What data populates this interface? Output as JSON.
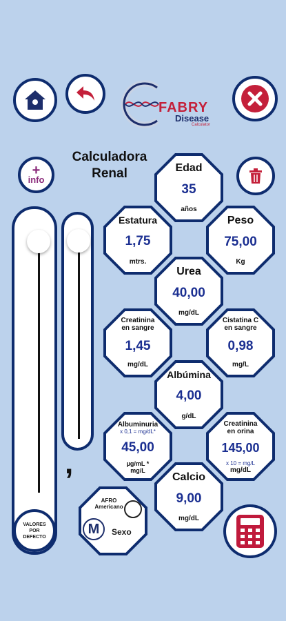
{
  "header": {
    "logo_main": "FABRY",
    "logo_sub": "Disease",
    "logo_small": "Calculator"
  },
  "title": {
    "line1": "Calculadora",
    "line2": "Renal"
  },
  "info_button": {
    "plus": "+",
    "label": "info"
  },
  "defaults_button": {
    "line1": "VALORES",
    "line2": "POR",
    "line3": "DEFECTO"
  },
  "decimal_separator": ",",
  "fields": {
    "edad": {
      "label": "Edad",
      "value": "35",
      "unit": "años"
    },
    "estatura": {
      "label": "Estatura",
      "value": "1,75",
      "unit": "mtrs."
    },
    "peso": {
      "label": "Peso",
      "value": "75,00",
      "unit": "Kg"
    },
    "urea": {
      "label": "Urea",
      "value": "40,00",
      "unit": "mg/dL"
    },
    "creatinina_sangre": {
      "label1": "Creatinina",
      "label2": "en sangre",
      "value": "1,45",
      "unit": "mg/dL"
    },
    "cistatina": {
      "label1": "Cistatina C",
      "label2": "en sangre",
      "value": "0,98",
      "unit": "mg/L"
    },
    "albumina": {
      "label": "Albúmina",
      "value": "4,00",
      "unit": "g/dL"
    },
    "albuminuria": {
      "label": "Albuminuria",
      "hint": "x 0,1 = mg/dL*",
      "value": "45,00",
      "unit1": "µg/mL *",
      "unit2": "mg/L"
    },
    "creatinina_orina": {
      "label1": "Creatinina",
      "label2": "en orina",
      "value": "145,00",
      "hint": "x 10 = mg/L",
      "unit": "mg/dL"
    },
    "calcio": {
      "label": "Calcio",
      "value": "9,00",
      "unit": "mg/dL"
    }
  },
  "sex_selector": {
    "afro_line1": "AFRO",
    "afro_line2": "Americano",
    "sex_value": "M",
    "sex_label": "Sexo"
  },
  "colors": {
    "background": "#bcd2ec",
    "navy": "#0e2c6e",
    "value_blue": "#1b2f91",
    "close_red": "#c4203a",
    "info_purple": "#8a2a7a",
    "calc_red": "#c01a3c"
  }
}
